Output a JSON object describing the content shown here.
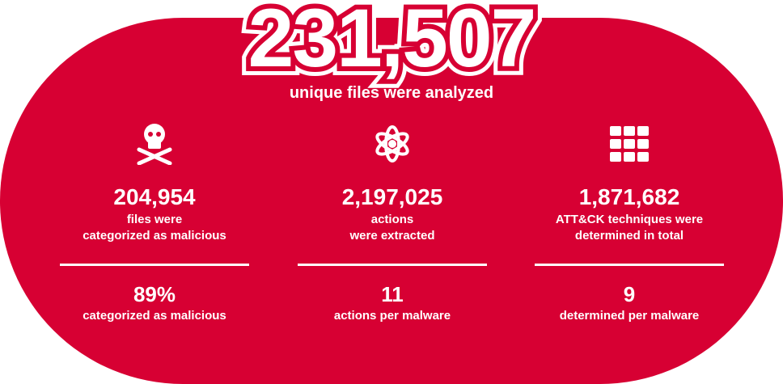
{
  "colors": {
    "brand": "#d70033",
    "text": "#ffffff"
  },
  "hero": {
    "value": "231,507",
    "label": "unique files were analyzed"
  },
  "stats": [
    {
      "icon": "skull-crossbones-icon",
      "value": "204,954",
      "label_1": "files were",
      "label_2": "categorized as malicious",
      "sub_value": "89%",
      "sub_label": "categorized as malicious"
    },
    {
      "icon": "atom-icon",
      "value": "2,197,025",
      "label_1": "actions",
      "label_2": "were extracted",
      "sub_value": "11",
      "sub_label": "actions per malware"
    },
    {
      "icon": "grid-icon",
      "value": "1,871,682",
      "label_1": "ATT&CK techniques were",
      "label_2": "determined in total",
      "sub_value": "9",
      "sub_label": "determined per malware"
    }
  ]
}
